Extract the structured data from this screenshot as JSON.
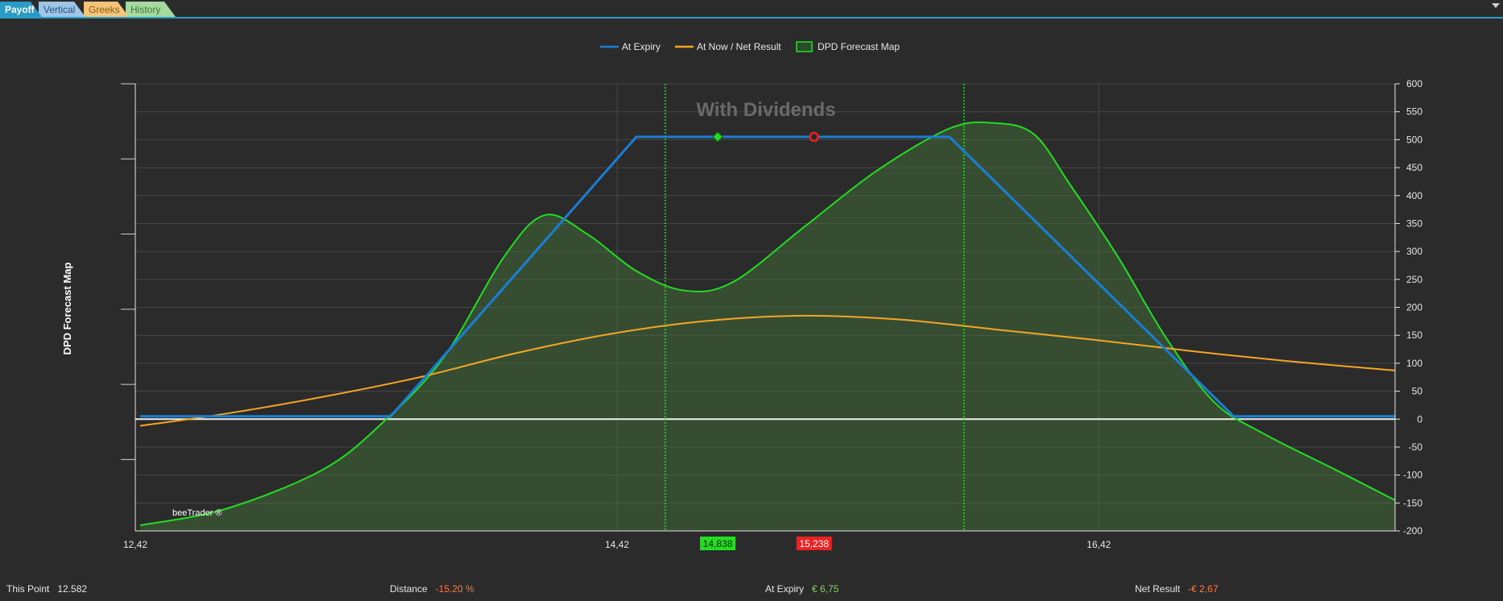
{
  "tabs": [
    {
      "label": "Payoff",
      "bg": "#2a9bc7",
      "fg": "#ffffff",
      "active": true
    },
    {
      "label": "Vertical",
      "bg": "#9ec4e6",
      "fg": "#1e4f8a",
      "active": false
    },
    {
      "label": "Greeks",
      "bg": "#f3c47a",
      "fg": "#8a5a10",
      "active": false
    },
    {
      "label": "History",
      "bg": "#a6d9a0",
      "fg": "#3a7a30",
      "active": false
    }
  ],
  "watermark": "With Dividends",
  "brand": "beeTrader ®",
  "left_axis_label": "DPD Forecast Map",
  "chart_data": {
    "type": "line",
    "xlim": [
      12.42,
      17.65
    ],
    "ylim": [
      -200,
      600
    ],
    "x_ticks": [
      {
        "value": 12.42,
        "label": "12,42"
      },
      {
        "value": 14.42,
        "label": "14,42"
      },
      {
        "value": 16.42,
        "label": "16,42"
      }
    ],
    "y_ticks": [
      -200,
      -150,
      -100,
      -50,
      0,
      50,
      100,
      150,
      200,
      250,
      300,
      350,
      400,
      450,
      500,
      550,
      600
    ],
    "legend": {
      "position": "top-center",
      "entries": [
        {
          "name": "At Expiry",
          "color": "#1a7fd4",
          "kind": "line"
        },
        {
          "name": "At Now / Net Result",
          "color": "#f5a623",
          "kind": "line"
        },
        {
          "name": "DPD Forecast Map",
          "color": "#22dd22",
          "kind": "box"
        }
      ]
    },
    "series": [
      {
        "name": "At Expiry",
        "color": "#1a7fd4",
        "points": [
          [
            12.44,
            5
          ],
          [
            13.48,
            5
          ],
          [
            14.5,
            505
          ],
          [
            15.8,
            505
          ],
          [
            16.98,
            5
          ],
          [
            17.65,
            5
          ]
        ]
      },
      {
        "name": "At Now / Net Result",
        "color": "#f5a623",
        "points": [
          [
            12.44,
            -12
          ],
          [
            12.8,
            10
          ],
          [
            13.2,
            40
          ],
          [
            13.6,
            75
          ],
          [
            14.0,
            118
          ],
          [
            14.4,
            153
          ],
          [
            14.8,
            176
          ],
          [
            15.2,
            185
          ],
          [
            15.6,
            178
          ],
          [
            16.0,
            160
          ],
          [
            16.4,
            142
          ],
          [
            16.8,
            122
          ],
          [
            17.2,
            104
          ],
          [
            17.65,
            87
          ]
        ]
      },
      {
        "name": "DPD Forecast Map",
        "color": "#22dd22",
        "fill": "rgba(70,120,60,0.45)",
        "points": [
          [
            12.44,
            -190
          ],
          [
            12.8,
            -160
          ],
          [
            13.2,
            -90
          ],
          [
            13.45,
            -5
          ],
          [
            13.7,
            110
          ],
          [
            13.95,
            290
          ],
          [
            14.12,
            365
          ],
          [
            14.3,
            330
          ],
          [
            14.5,
            265
          ],
          [
            14.7,
            230
          ],
          [
            14.9,
            245
          ],
          [
            15.2,
            345
          ],
          [
            15.5,
            445
          ],
          [
            15.8,
            520
          ],
          [
            15.98,
            530
          ],
          [
            16.15,
            510
          ],
          [
            16.3,
            420
          ],
          [
            16.5,
            290
          ],
          [
            16.7,
            145
          ],
          [
            16.9,
            30
          ],
          [
            17.1,
            -25
          ],
          [
            17.4,
            -90
          ],
          [
            17.65,
            -145
          ]
        ]
      }
    ],
    "vlines": [
      14.62,
      15.86
    ],
    "markers": [
      {
        "x": 14.838,
        "y": 505,
        "shape": "diamond",
        "color": "#22dd22",
        "label": "14,838",
        "label_bg": "#22dd22",
        "label_fg": "#003300"
      },
      {
        "x": 15.238,
        "y": 505,
        "shape": "circle",
        "color": "#ee2222",
        "label": "15,238",
        "label_bg": "#ee2222",
        "label_fg": "#ffffff"
      }
    ]
  },
  "status": {
    "this_point": {
      "label": "This Point",
      "value": "12.582",
      "color": "#e6e6e6"
    },
    "distance": {
      "label": "Distance",
      "value": "-15.20 %",
      "color": "#ff7a40"
    },
    "at_expiry": {
      "label": "At Expiry",
      "value": "€ 6,75",
      "color": "#7ed957"
    },
    "net_result": {
      "label": "Net Result",
      "value": "-€ 2,67",
      "color": "#ff7a40"
    }
  }
}
